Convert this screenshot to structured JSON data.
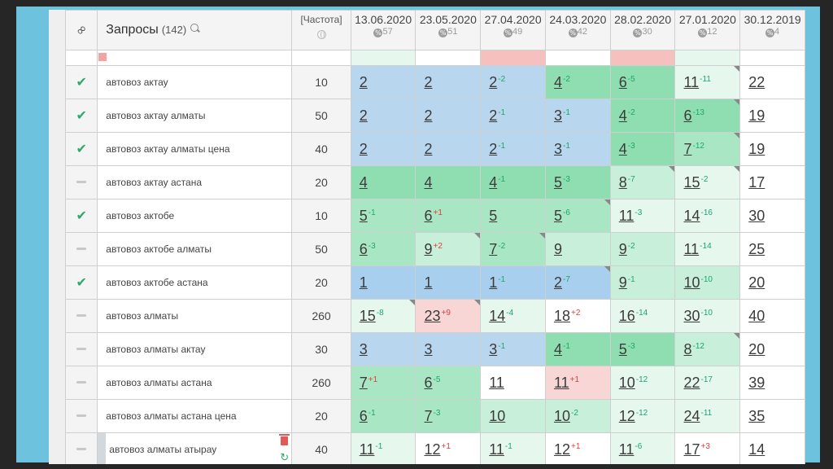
{
  "header": {
    "title": "Запросы",
    "count": "(142)",
    "freq_label": "[Частота]",
    "dates": [
      {
        "label": "13.06.2020",
        "sub": "57"
      },
      {
        "label": "23.05.2020",
        "sub": "51"
      },
      {
        "label": "27.04.2020",
        "sub": "49"
      },
      {
        "label": "24.03.2020",
        "sub": "42"
      },
      {
        "label": "28.02.2020",
        "sub": "30"
      },
      {
        "label": "27.01.2020",
        "sub": "12"
      },
      {
        "label": "30.12.2019",
        "sub": "4"
      }
    ]
  },
  "rows": [
    {
      "status": "check",
      "query": "автовоз актау",
      "freq": "10",
      "cells": [
        {
          "v": "2",
          "d": "",
          "t": "",
          "bg": "b-blue"
        },
        {
          "v": "2",
          "d": "",
          "t": "",
          "bg": "b-blue"
        },
        {
          "v": "2",
          "d": "-2",
          "t": "up",
          "bg": "b-blue"
        },
        {
          "v": "4",
          "d": "-2",
          "t": "up",
          "bg": "b-green"
        },
        {
          "v": "6",
          "d": "-5",
          "t": "up",
          "bg": "b-green"
        },
        {
          "v": "11",
          "d": "-11",
          "t": "up",
          "bg": "b-xlgreen",
          "c": 1
        },
        {
          "v": "22",
          "d": "",
          "t": "",
          "bg": "b-white"
        }
      ]
    },
    {
      "status": "check",
      "query": "автовоз актау алматы",
      "freq": "50",
      "cells": [
        {
          "v": "2",
          "d": "",
          "t": "",
          "bg": "b-blue"
        },
        {
          "v": "2",
          "d": "",
          "t": "",
          "bg": "b-blue"
        },
        {
          "v": "2",
          "d": "-1",
          "t": "up",
          "bg": "b-blue"
        },
        {
          "v": "3",
          "d": "-1",
          "t": "up",
          "bg": "b-blue"
        },
        {
          "v": "4",
          "d": "-2",
          "t": "up",
          "bg": "b-green"
        },
        {
          "v": "6",
          "d": "-13",
          "t": "up",
          "bg": "b-green",
          "c": 1
        },
        {
          "v": "19",
          "d": "",
          "t": "",
          "bg": "b-white"
        }
      ]
    },
    {
      "status": "check",
      "query": "автовоз актау алматы цена",
      "freq": "40",
      "cells": [
        {
          "v": "2",
          "d": "",
          "t": "",
          "bg": "b-blue"
        },
        {
          "v": "2",
          "d": "",
          "t": "",
          "bg": "b-blue"
        },
        {
          "v": "2",
          "d": "-1",
          "t": "up",
          "bg": "b-blue"
        },
        {
          "v": "3",
          "d": "-1",
          "t": "up",
          "bg": "b-blue"
        },
        {
          "v": "4",
          "d": "-3",
          "t": "up",
          "bg": "b-green"
        },
        {
          "v": "7",
          "d": "-12",
          "t": "up",
          "bg": "b-green2",
          "c": 1
        },
        {
          "v": "19",
          "d": "",
          "t": "",
          "bg": "b-white"
        }
      ]
    },
    {
      "status": "dash",
      "query": "автовоз актау астана",
      "freq": "20",
      "cells": [
        {
          "v": "4",
          "d": "",
          "t": "",
          "bg": "b-green"
        },
        {
          "v": "4",
          "d": "",
          "t": "",
          "bg": "b-green"
        },
        {
          "v": "4",
          "d": "-1",
          "t": "up",
          "bg": "b-green"
        },
        {
          "v": "5",
          "d": "-3",
          "t": "up",
          "bg": "b-green"
        },
        {
          "v": "8",
          "d": "-7",
          "t": "up",
          "bg": "b-lgreen",
          "c": 1
        },
        {
          "v": "15",
          "d": "-2",
          "t": "up",
          "bg": "b-xlgreen",
          "c": 1
        },
        {
          "v": "17",
          "d": "",
          "t": "",
          "bg": "b-white"
        }
      ]
    },
    {
      "status": "check",
      "query": "автовоз актобе",
      "freq": "10",
      "cells": [
        {
          "v": "5",
          "d": "-1",
          "t": "up",
          "bg": "b-green2"
        },
        {
          "v": "6",
          "d": "+1",
          "t": "down",
          "bg": "b-green2"
        },
        {
          "v": "5",
          "d": "",
          "t": "",
          "bg": "b-green2"
        },
        {
          "v": "5",
          "d": "-6",
          "t": "up",
          "bg": "b-green2",
          "c": 1
        },
        {
          "v": "11",
          "d": "-3",
          "t": "up",
          "bg": "b-xlgreen"
        },
        {
          "v": "14",
          "d": "-16",
          "t": "up",
          "bg": "b-xlgreen"
        },
        {
          "v": "30",
          "d": "",
          "t": "",
          "bg": "b-white"
        }
      ]
    },
    {
      "status": "dash",
      "query": "автовоз актобе алматы",
      "freq": "50",
      "cells": [
        {
          "v": "6",
          "d": "-3",
          "t": "up",
          "bg": "b-green2"
        },
        {
          "v": "9",
          "d": "+2",
          "t": "down",
          "bg": "b-lgreen",
          "c": 1
        },
        {
          "v": "7",
          "d": "-2",
          "t": "up",
          "bg": "b-green2",
          "c": 1
        },
        {
          "v": "9",
          "d": "",
          "t": "",
          "bg": "b-lgreen"
        },
        {
          "v": "9",
          "d": "-2",
          "t": "up",
          "bg": "b-lgreen"
        },
        {
          "v": "11",
          "d": "-14",
          "t": "up",
          "bg": "b-xlgreen"
        },
        {
          "v": "25",
          "d": "",
          "t": "",
          "bg": "b-white"
        }
      ]
    },
    {
      "status": "check",
      "query": "автовоз актобе астана",
      "freq": "20",
      "cells": [
        {
          "v": "1",
          "d": "",
          "t": "",
          "bg": "b-blue2"
        },
        {
          "v": "1",
          "d": "",
          "t": "",
          "bg": "b-blue2"
        },
        {
          "v": "1",
          "d": "-1",
          "t": "up",
          "bg": "b-blue2"
        },
        {
          "v": "2",
          "d": "-7",
          "t": "up",
          "bg": "b-blue2",
          "c": 1
        },
        {
          "v": "9",
          "d": "-1",
          "t": "up",
          "bg": "b-lgreen"
        },
        {
          "v": "10",
          "d": "-10",
          "t": "up",
          "bg": "b-lgreen"
        },
        {
          "v": "20",
          "d": "",
          "t": "",
          "bg": "b-white"
        }
      ]
    },
    {
      "status": "dash",
      "query": "автовоз алматы",
      "freq": "260",
      "cells": [
        {
          "v": "15",
          "d": "-8",
          "t": "up",
          "bg": "b-xlgreen",
          "c": 1
        },
        {
          "v": "23",
          "d": "+9",
          "t": "down",
          "bg": "b-pink",
          "c": 1
        },
        {
          "v": "14",
          "d": "-4",
          "t": "up",
          "bg": "b-xlgreen"
        },
        {
          "v": "18",
          "d": "+2",
          "t": "down",
          "bg": "b-white"
        },
        {
          "v": "16",
          "d": "-14",
          "t": "up",
          "bg": "b-xlgreen"
        },
        {
          "v": "30",
          "d": "-10",
          "t": "up",
          "bg": "b-xlgreen"
        },
        {
          "v": "40",
          "d": "",
          "t": "",
          "bg": "b-white"
        }
      ]
    },
    {
      "status": "dash",
      "query": "автовоз алматы актау",
      "freq": "30",
      "cells": [
        {
          "v": "3",
          "d": "",
          "t": "",
          "bg": "b-blue"
        },
        {
          "v": "3",
          "d": "",
          "t": "",
          "bg": "b-blue"
        },
        {
          "v": "3",
          "d": "-1",
          "t": "up",
          "bg": "b-blue"
        },
        {
          "v": "4",
          "d": "-1",
          "t": "up",
          "bg": "b-green"
        },
        {
          "v": "5",
          "d": "-3",
          "t": "up",
          "bg": "b-green"
        },
        {
          "v": "8",
          "d": "-12",
          "t": "up",
          "bg": "b-lgreen",
          "c": 1
        },
        {
          "v": "20",
          "d": "",
          "t": "",
          "bg": "b-white"
        }
      ]
    },
    {
      "status": "dash",
      "query": "автовоз алматы астана",
      "freq": "260",
      "cells": [
        {
          "v": "7",
          "d": "+1",
          "t": "down",
          "bg": "b-green2"
        },
        {
          "v": "6",
          "d": "-5",
          "t": "up",
          "bg": "b-green2"
        },
        {
          "v": "11",
          "d": "",
          "t": "",
          "bg": "b-white"
        },
        {
          "v": "11",
          "d": "+1",
          "t": "down",
          "bg": "b-pink"
        },
        {
          "v": "10",
          "d": "-12",
          "t": "up",
          "bg": "b-xlgreen"
        },
        {
          "v": "22",
          "d": "-17",
          "t": "up",
          "bg": "b-xlgreen"
        },
        {
          "v": "39",
          "d": "",
          "t": "",
          "bg": "b-white"
        }
      ]
    },
    {
      "status": "dash",
      "query": "автовоз алматы астана цена",
      "freq": "20",
      "cells": [
        {
          "v": "6",
          "d": "-1",
          "t": "up",
          "bg": "b-green2"
        },
        {
          "v": "7",
          "d": "-3",
          "t": "up",
          "bg": "b-green2"
        },
        {
          "v": "10",
          "d": "",
          "t": "",
          "bg": "b-lgreen"
        },
        {
          "v": "10",
          "d": "-2",
          "t": "up",
          "bg": "b-lgreen"
        },
        {
          "v": "12",
          "d": "-12",
          "t": "up",
          "bg": "b-xlgreen"
        },
        {
          "v": "24",
          "d": "-11",
          "t": "up",
          "bg": "b-xlgreen"
        },
        {
          "v": "35",
          "d": "",
          "t": "",
          "bg": "b-white"
        }
      ]
    },
    {
      "status": "dash",
      "query": "автовоз алматы атырау",
      "freq": "40",
      "selected": true,
      "cells": [
        {
          "v": "11",
          "d": "-1",
          "t": "up",
          "bg": "b-xlgreen"
        },
        {
          "v": "12",
          "d": "+1",
          "t": "down",
          "bg": "b-white"
        },
        {
          "v": "11",
          "d": "-1",
          "t": "up",
          "bg": "b-xlgreen"
        },
        {
          "v": "12",
          "d": "+1",
          "t": "down",
          "bg": "b-white"
        },
        {
          "v": "11",
          "d": "-6",
          "t": "up",
          "bg": "b-xlgreen"
        },
        {
          "v": "17",
          "d": "+3",
          "t": "down",
          "bg": "b-white"
        },
        {
          "v": "14",
          "d": "",
          "t": "",
          "bg": "b-white"
        }
      ]
    }
  ],
  "icons": {
    "link": "link-icon",
    "search": "search-icon",
    "globe": "globe-icon",
    "check": "check-icon",
    "dash": "dash-icon",
    "trash": "trash-icon",
    "refresh": "refresh-icon",
    "percent": "percent-icon"
  }
}
